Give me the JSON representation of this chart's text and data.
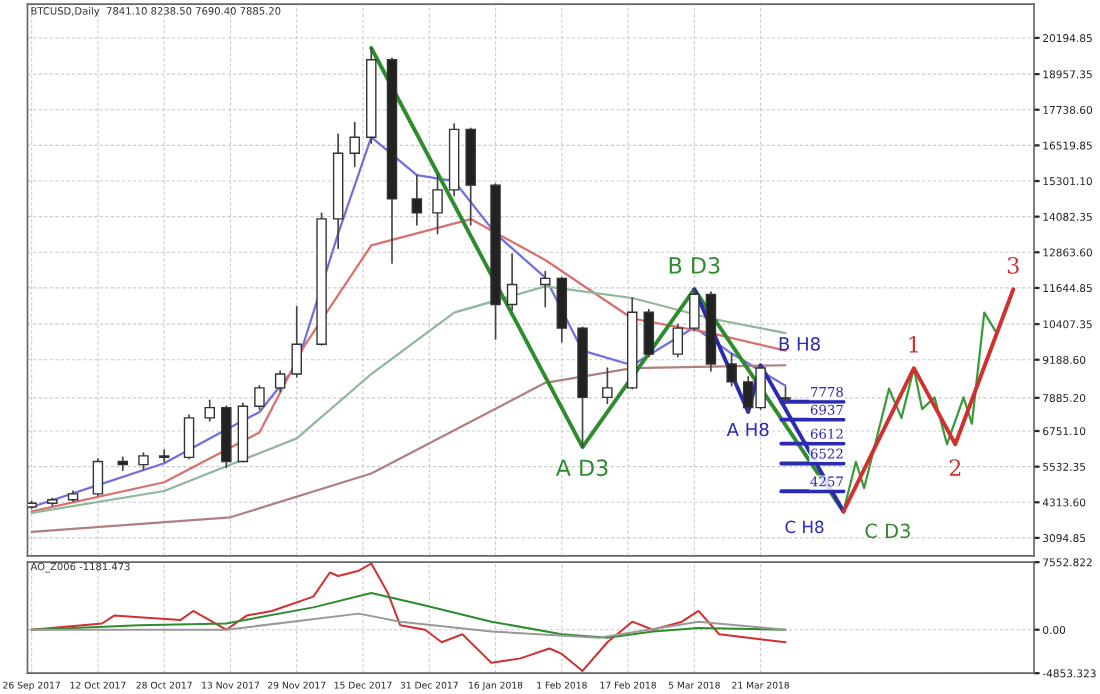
{
  "chart_data": [
    {
      "type": "candlestick",
      "title": "BTCUSD,Daily  7841.10 8238.50 7690.40 7885.20",
      "x": [
        "2017-09-26",
        "2017-10-01",
        "2017-10-06",
        "2017-10-12",
        "2017-10-18",
        "2017-10-23",
        "2017-10-28",
        "2017-11-03",
        "2017-11-08",
        "2017-11-12",
        "2017-11-16",
        "2017-11-20",
        "2017-11-25",
        "2017-11-29",
        "2017-12-05",
        "2017-12-09",
        "2017-12-13",
        "2017-12-17",
        "2017-12-22",
        "2017-12-28",
        "2018-01-02",
        "2018-01-06",
        "2018-01-10",
        "2018-01-16",
        "2018-01-20",
        "2018-01-28",
        "2018-02-01",
        "2018-02-06",
        "2018-02-12",
        "2018-02-18",
        "2018-02-22",
        "2018-03-01",
        "2018-03-05",
        "2018-03-09",
        "2018-03-14",
        "2018-03-18",
        "2018-03-21",
        "2018-03-27"
      ],
      "ohlc": [
        [
          4150,
          4350,
          4100,
          4280
        ],
        [
          4280,
          4450,
          4200,
          4400
        ],
        [
          4400,
          4700,
          4350,
          4600
        ],
        [
          4600,
          5800,
          4550,
          5710
        ],
        [
          5710,
          5850,
          5400,
          5600
        ],
        [
          5600,
          6000,
          5450,
          5900
        ],
        [
          5900,
          6100,
          5700,
          5850
        ],
        [
          5850,
          7300,
          5800,
          7200
        ],
        [
          7200,
          7800,
          7100,
          7550
        ],
        [
          7550,
          7600,
          5500,
          5710
        ],
        [
          5710,
          7700,
          5700,
          7600
        ],
        [
          7600,
          8300,
          7500,
          8227
        ],
        [
          8227,
          8800,
          8100,
          8700
        ],
        [
          8700,
          11000,
          8600,
          9720
        ],
        [
          9720,
          14200,
          9700,
          14006
        ],
        [
          14006,
          16900,
          13000,
          16250
        ],
        [
          16250,
          17300,
          15800,
          16800
        ],
        [
          16800,
          19850,
          16600,
          19450
        ],
        [
          19450,
          19500,
          12500,
          14690
        ],
        [
          14690,
          15500,
          13800,
          14210
        ],
        [
          14210,
          15500,
          13500,
          15000
        ],
        [
          15000,
          17250,
          14800,
          17066
        ],
        [
          17066,
          17100,
          13800,
          15160
        ],
        [
          15160,
          15200,
          9900,
          11080
        ],
        [
          11080,
          12800,
          10900,
          11760
        ],
        [
          11760,
          12200,
          11000,
          11970
        ],
        [
          11970,
          12000,
          9800,
          10270
        ],
        [
          10270,
          10300,
          6200,
          7900
        ],
        [
          7900,
          8900,
          7700,
          8227
        ],
        [
          8227,
          11300,
          8200,
          10811
        ],
        [
          10811,
          10900,
          9300,
          9380
        ],
        [
          9380,
          10400,
          9300,
          10270
        ],
        [
          10270,
          11600,
          10200,
          11424
        ],
        [
          11424,
          11500,
          8800,
          9042
        ],
        [
          9042,
          9400,
          8300,
          8430
        ],
        [
          8430,
          8600,
          7400,
          7550
        ],
        [
          7550,
          9000,
          7500,
          8906
        ],
        [
          7841.1,
          8238.5,
          7690.4,
          7885.2
        ]
      ],
      "series": [
        {
          "type": "line",
          "color": "#7070dd",
          "x": [
            "2017-09-26",
            "2017-10-12",
            "2017-10-28",
            "2017-11-12",
            "2017-11-20",
            "2017-11-29",
            "2017-12-09",
            "2017-12-17",
            "2017-12-28",
            "2018-01-06",
            "2018-01-16",
            "2018-01-28",
            "2018-02-06",
            "2018-02-18",
            "2018-03-05",
            "2018-03-14",
            "2018-03-27"
          ],
          "values": [
            4150,
            4900,
            5650,
            6800,
            7400,
            9000,
            13500,
            16800,
            15500,
            15300,
            13500,
            12000,
            9500,
            9000,
            10300,
            9400,
            8300
          ]
        },
        {
          "type": "line",
          "color": "#d87070",
          "x": [
            "2017-09-26",
            "2017-10-28",
            "2017-11-20",
            "2017-12-01",
            "2017-12-17",
            "2018-01-10",
            "2018-01-28",
            "2018-02-18",
            "2018-03-09",
            "2018-03-27"
          ],
          "values": [
            4000,
            5000,
            6700,
            9700,
            13100,
            14000,
            12600,
            10600,
            10100,
            9500
          ]
        },
        {
          "type": "line",
          "color": "#8fb79a",
          "x": [
            "2017-09-26",
            "2017-10-28",
            "2017-11-29",
            "2017-12-17",
            "2018-01-06",
            "2018-01-28",
            "2018-02-18",
            "2018-03-09",
            "2018-03-27"
          ],
          "values": [
            3950,
            4700,
            6500,
            8700,
            10800,
            11700,
            11300,
            10600,
            10100
          ]
        },
        {
          "type": "line",
          "color": "#b08080",
          "x": [
            "2017-09-26",
            "2017-11-13",
            "2017-12-17",
            "2018-01-28",
            "2018-02-18",
            "2018-03-27"
          ],
          "values": [
            3300,
            3800,
            5300,
            8400,
            8900,
            9000
          ]
        },
        {
          "type": "line",
          "color": "#2e8b2e",
          "x": [
            "2017-12-17",
            "2018-02-06",
            "2018-03-05",
            "2018-04-10"
          ],
          "values": [
            19850,
            6200,
            11600,
            4000
          ]
        },
        {
          "type": "line",
          "color": "#2b2bb0",
          "x": [
            "2018-03-05",
            "2018-03-18",
            "2018-03-21",
            "2018-04-10"
          ],
          "values": [
            11600,
            7400,
            9000,
            4000
          ]
        },
        {
          "type": "line",
          "color": "#2b2bb0",
          "x": [
            "2018-03-26",
            "2018-04-10"
          ],
          "values": [
            7750,
            7750
          ]
        },
        {
          "type": "line",
          "color": "#2b2bb0",
          "x": [
            "2018-03-26",
            "2018-04-10"
          ],
          "values": [
            7140,
            7140
          ]
        },
        {
          "type": "line",
          "color": "#2b2bb0",
          "x": [
            "2018-03-26",
            "2018-04-10"
          ],
          "values": [
            6320,
            6320
          ]
        },
        {
          "type": "line",
          "color": "#2b2bb0",
          "x": [
            "2018-03-26",
            "2018-04-10"
          ],
          "values": [
            5640,
            5640
          ]
        },
        {
          "type": "line",
          "color": "#2b2bb0",
          "x": [
            "2018-03-26",
            "2018-04-10"
          ],
          "values": [
            4690,
            4690
          ]
        },
        {
          "type": "line",
          "color": "#3a9a3a",
          "x": [
            "2018-04-10",
            "2018-04-13",
            "2018-04-15",
            "2018-04-21",
            "2018-04-24",
            "2018-04-27",
            "2018-04-29",
            "2018-05-02",
            "2018-05-05",
            "2018-05-09",
            "2018-05-11",
            "2018-05-14",
            "2018-05-17",
            "2018-05-21"
          ],
          "values": [
            4000,
            5700,
            4800,
            8200,
            7200,
            8900,
            7500,
            7900,
            6300,
            7900,
            7000,
            10800,
            10100,
            11600
          ]
        },
        {
          "type": "line",
          "color": "#d03030",
          "x": [
            "2018-04-10",
            "2018-04-27",
            "2018-05-07",
            "2018-05-21"
          ],
          "values": [
            4000,
            8900,
            6300,
            11600
          ]
        }
      ],
      "annotations": [
        {
          "text": "B D3",
          "x": "2018-03-05",
          "y": 11600
        },
        {
          "text": "A D3",
          "x": "2018-02-06",
          "y": 6200
        },
        {
          "text": "C D3",
          "x": "2018-04-10",
          "y": 4000
        },
        {
          "text": "A H8",
          "x": "2018-03-18",
          "y": 7400
        },
        {
          "text": "B H8",
          "x": "2018-03-21",
          "y": 9000
        },
        {
          "text": "C H8",
          "x": "2018-04-10",
          "y": 4000
        },
        {
          "text": "1",
          "x": "2018-04-27",
          "y": 8900
        },
        {
          "text": "2",
          "x": "2018-05-07",
          "y": 6300
        },
        {
          "text": "3",
          "x": "2018-05-21",
          "y": 11600
        },
        {
          "text": "7778",
          "x": "2018-04-06",
          "y": 7750
        },
        {
          "text": "6937",
          "x": "2018-04-06",
          "y": 7140
        },
        {
          "text": "6612",
          "x": "2018-04-06",
          "y": 6320
        },
        {
          "text": "6522",
          "x": "2018-04-06",
          "y": 5640
        },
        {
          "text": "4257",
          "x": "2018-04-06",
          "y": 4690
        }
      ],
      "xlim": [
        "2017-09-25",
        "2018-05-26"
      ],
      "xticks": [
        {
          "value": "2017-09-26",
          "label": null
        },
        {
          "value": "2017-10-12",
          "label": null
        },
        {
          "value": "2017-10-28",
          "label": null
        },
        {
          "value": "2017-11-13",
          "label": null
        },
        {
          "value": "2017-11-29",
          "label": null
        },
        {
          "value": "2017-12-15",
          "label": null
        },
        {
          "value": "2017-12-31",
          "label": null
        },
        {
          "value": "2018-01-16",
          "label": null
        },
        {
          "value": "2018-02-01",
          "label": null
        },
        {
          "value": "2018-02-17",
          "label": null
        },
        {
          "value": "2018-03-05",
          "label": null
        },
        {
          "value": "2018-03-21",
          "label": null
        }
      ],
      "ylim": [
        2480,
        21350
      ],
      "yticks": [
        {
          "value": 3094.85,
          "label": "3094.85"
        },
        {
          "value": 4313.6,
          "label": "4313.60"
        },
        {
          "value": 5532.35,
          "label": "5532.35"
        },
        {
          "value": 6751.1,
          "label": "6751.10"
        },
        {
          "value": 7885.2,
          "label": "7885.20"
        },
        {
          "value": 9188.6,
          "label": "9188.60"
        },
        {
          "value": 10407.35,
          "label": "10407.35"
        },
        {
          "value": 11644.85,
          "label": "11644.85"
        },
        {
          "value": 12863.6,
          "label": "12863.60"
        },
        {
          "value": 14082.35,
          "label": "14082.35"
        },
        {
          "value": 15301.1,
          "label": "15301.10"
        },
        {
          "value": 16519.85,
          "label": "16519.85"
        },
        {
          "value": 17738.6,
          "label": "17738.60"
        },
        {
          "value": 18957.35,
          "label": "18957.35"
        },
        {
          "value": 20194.85,
          "label": "20194.85"
        }
      ],
      "grid": true,
      "tick_labels": "y"
    },
    {
      "type": "line",
      "title": "AO_Z006 -1181.473",
      "series": [
        {
          "color": "#d03030",
          "x": [
            "2017-09-26",
            "2017-10-13",
            "2017-10-16",
            "2017-10-22",
            "2017-11-01",
            "2017-11-04",
            "2017-11-12",
            "2017-11-17",
            "2017-11-23",
            "2017-12-03",
            "2017-12-07",
            "2017-12-09",
            "2017-12-14",
            "2017-12-17",
            "2017-12-21",
            "2017-12-24",
            "2017-12-30",
            "2018-01-03",
            "2018-01-08",
            "2018-01-15",
            "2018-01-22",
            "2018-01-29",
            "2018-02-01",
            "2018-02-06",
            "2018-02-12",
            "2018-02-18",
            "2018-02-23",
            "2018-03-02",
            "2018-03-06",
            "2018-03-11",
            "2018-03-18",
            "2018-03-27"
          ],
          "values": [
            0,
            700,
            1600,
            1400,
            1100,
            2100,
            0,
            1600,
            2100,
            3700,
            6400,
            6000,
            6600,
            7400,
            4100,
            500,
            0,
            -1400,
            -500,
            -3700,
            -3200,
            -2100,
            -2700,
            -4600,
            -1400,
            900,
            0,
            900,
            2100,
            -500,
            -900,
            -1400
          ]
        },
        {
          "color": "#2e8b2e",
          "x": [
            "2017-09-26",
            "2017-10-22",
            "2017-11-12",
            "2017-12-03",
            "2017-12-17",
            "2017-12-30",
            "2018-01-15",
            "2018-02-01",
            "2018-02-12",
            "2018-02-23",
            "2018-03-06",
            "2018-03-27"
          ],
          "values": [
            0,
            500,
            700,
            2500,
            4100,
            2700,
            900,
            -500,
            -900,
            -200,
            200,
            0
          ]
        },
        {
          "color": "#999999",
          "x": [
            "2017-09-26",
            "2017-11-12",
            "2017-12-14",
            "2017-12-24",
            "2018-01-15",
            "2018-02-10",
            "2018-03-06",
            "2018-03-27"
          ],
          "values": [
            0,
            0,
            1800,
            900,
            -200,
            -900,
            900,
            0
          ]
        }
      ],
      "xlim": [
        "2017-09-25",
        "2018-05-26"
      ],
      "xticks": [
        {
          "value": "2017-09-26",
          "label": "26 Sep 2017"
        },
        {
          "value": "2017-10-12",
          "label": "12 Oct 2017"
        },
        {
          "value": "2017-10-28",
          "label": "28 Oct 2017"
        },
        {
          "value": "2017-11-13",
          "label": "13 Nov 2017"
        },
        {
          "value": "2017-11-29",
          "label": "29 Nov 2017"
        },
        {
          "value": "2017-12-15",
          "label": "15 Dec 2017"
        },
        {
          "value": "2017-12-31",
          "label": "31 Dec 2017"
        },
        {
          "value": "2018-01-16",
          "label": "16 Jan 2018"
        },
        {
          "value": "2018-02-01",
          "label": "1 Feb 2018"
        },
        {
          "value": "2018-02-17",
          "label": "17 Feb 2018"
        },
        {
          "value": "2018-03-05",
          "label": "5 Mar 2018"
        },
        {
          "value": "2018-03-21",
          "label": "21 Mar 2018"
        }
      ],
      "ylim": [
        -4853.323,
        7552.822
      ],
      "yticks": [
        {
          "value": -4853.323,
          "label": "-4853.323"
        },
        {
          "value": 0,
          "label": "0.00"
        },
        {
          "value": 7552.822,
          "label": "7552.822"
        }
      ],
      "grid": true
    }
  ]
}
